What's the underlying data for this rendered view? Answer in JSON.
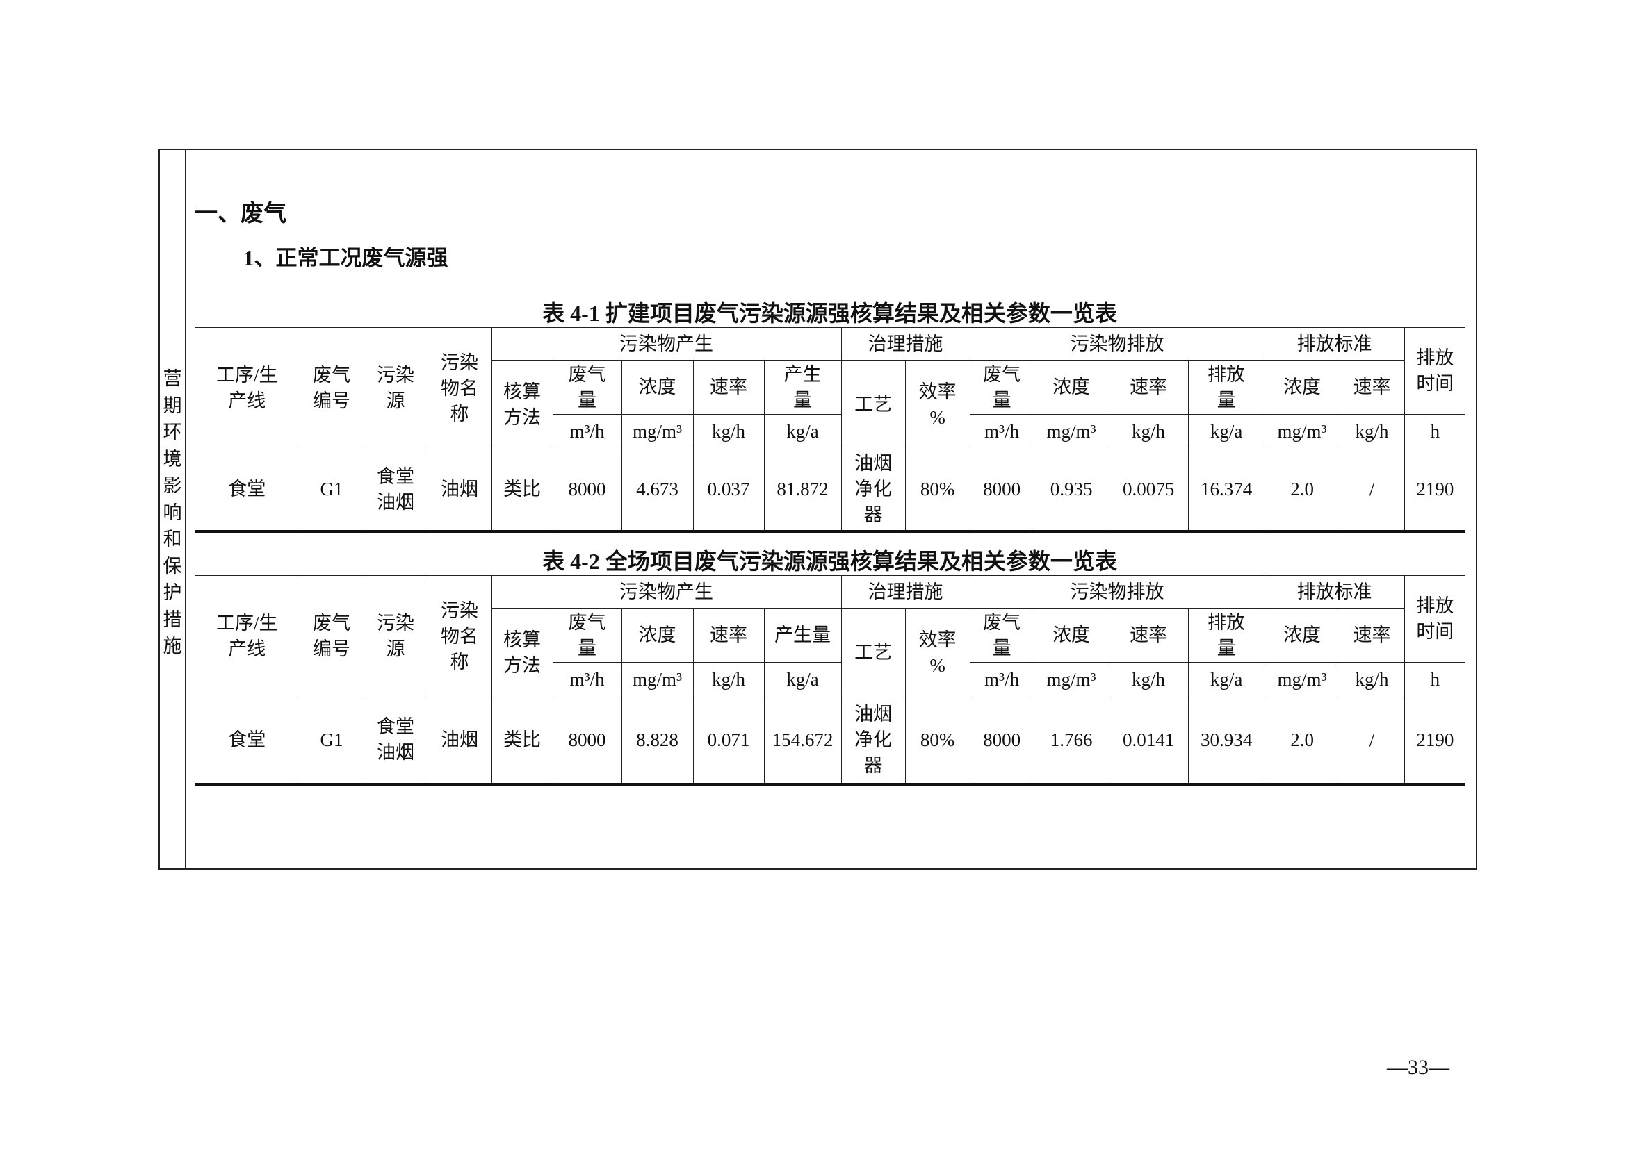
{
  "side_label": "营\n期\n环\n境\n影\n响\n和\n保\n护\n措\n施",
  "section_title": "一、废气",
  "subsection_title": "1、正常工况废气源强",
  "tables": [
    {
      "caption": "表 4-1 扩建项目废气污染源源强核算结果及相关参数一览表",
      "header": {
        "process": "工序/生\n产线",
        "gas_id": "废气\n编号",
        "source": "污染\n源",
        "pollutant": "污染\n物名\n称",
        "generation_group": "污染物产生",
        "method": "核算\n方法",
        "gen_cols": [
          {
            "label": "废气\n量",
            "unit": "m³/h"
          },
          {
            "label": "浓度",
            "unit": "mg/m³"
          },
          {
            "label": "速率",
            "unit": "kg/h"
          },
          {
            "label": "产生\n量",
            "unit": "kg/a"
          }
        ],
        "treatment_group": "治理措施",
        "craft": "工艺",
        "efficiency": "效率\n%",
        "emission_group": "污染物排放",
        "emi_cols": [
          {
            "label": "废气\n量",
            "unit": "m³/h"
          },
          {
            "label": "浓度",
            "unit": "mg/m³"
          },
          {
            "label": "速率",
            "unit": "kg/h"
          },
          {
            "label": "排放\n量",
            "unit": "kg/a"
          }
        ],
        "standard_group": "排放标准",
        "std_cols": [
          {
            "label": "浓度",
            "unit": "mg/m³"
          },
          {
            "label": "速率",
            "unit": "kg/h"
          }
        ],
        "time_label": "排放\n时间",
        "time_unit": "h"
      },
      "row": [
        "食堂",
        "G1",
        "食堂\n油烟",
        "油烟",
        "类比",
        "8000",
        "4.673",
        "0.037",
        "81.872",
        "油烟\n净化\n器",
        "80%",
        "8000",
        "0.935",
        "0.0075",
        "16.374",
        "2.0",
        "/",
        "2190"
      ]
    },
    {
      "caption": "表 4-2 全场项目废气污染源源强核算结果及相关参数一览表",
      "header": {
        "process": "工序/生\n产线",
        "gas_id": "废气\n编号",
        "source": "污染\n源",
        "pollutant": "污染\n物名\n称",
        "generation_group": "污染物产生",
        "method": "核算\n方法",
        "gen_cols": [
          {
            "label": "废气\n量",
            "unit": "m³/h"
          },
          {
            "label": "浓度",
            "unit": "mg/m³"
          },
          {
            "label": "速率",
            "unit": "kg/h"
          },
          {
            "label": "产生量",
            "unit": "kg/a"
          }
        ],
        "treatment_group": "治理措施",
        "craft": "工艺",
        "efficiency": "效率\n%",
        "emission_group": "污染物排放",
        "emi_cols": [
          {
            "label": "废气\n量",
            "unit": "m³/h"
          },
          {
            "label": "浓度",
            "unit": "mg/m³"
          },
          {
            "label": "速率",
            "unit": "kg/h"
          },
          {
            "label": "排放\n量",
            "unit": "kg/a"
          }
        ],
        "standard_group": "排放标准",
        "std_cols": [
          {
            "label": "浓度",
            "unit": "mg/m³"
          },
          {
            "label": "速率",
            "unit": "kg/h"
          }
        ],
        "time_label": "排放\n时间",
        "time_unit": "h"
      },
      "row": [
        "食堂",
        "G1",
        "食堂\n油烟",
        "油烟",
        "类比",
        "8000",
        "8.828",
        "0.071",
        "154.672",
        "油烟\n净化\n器",
        "80%",
        "8000",
        "1.766",
        "0.0141",
        "30.934",
        "2.0",
        "/",
        "2190"
      ]
    }
  ],
  "page_number": "—33—"
}
